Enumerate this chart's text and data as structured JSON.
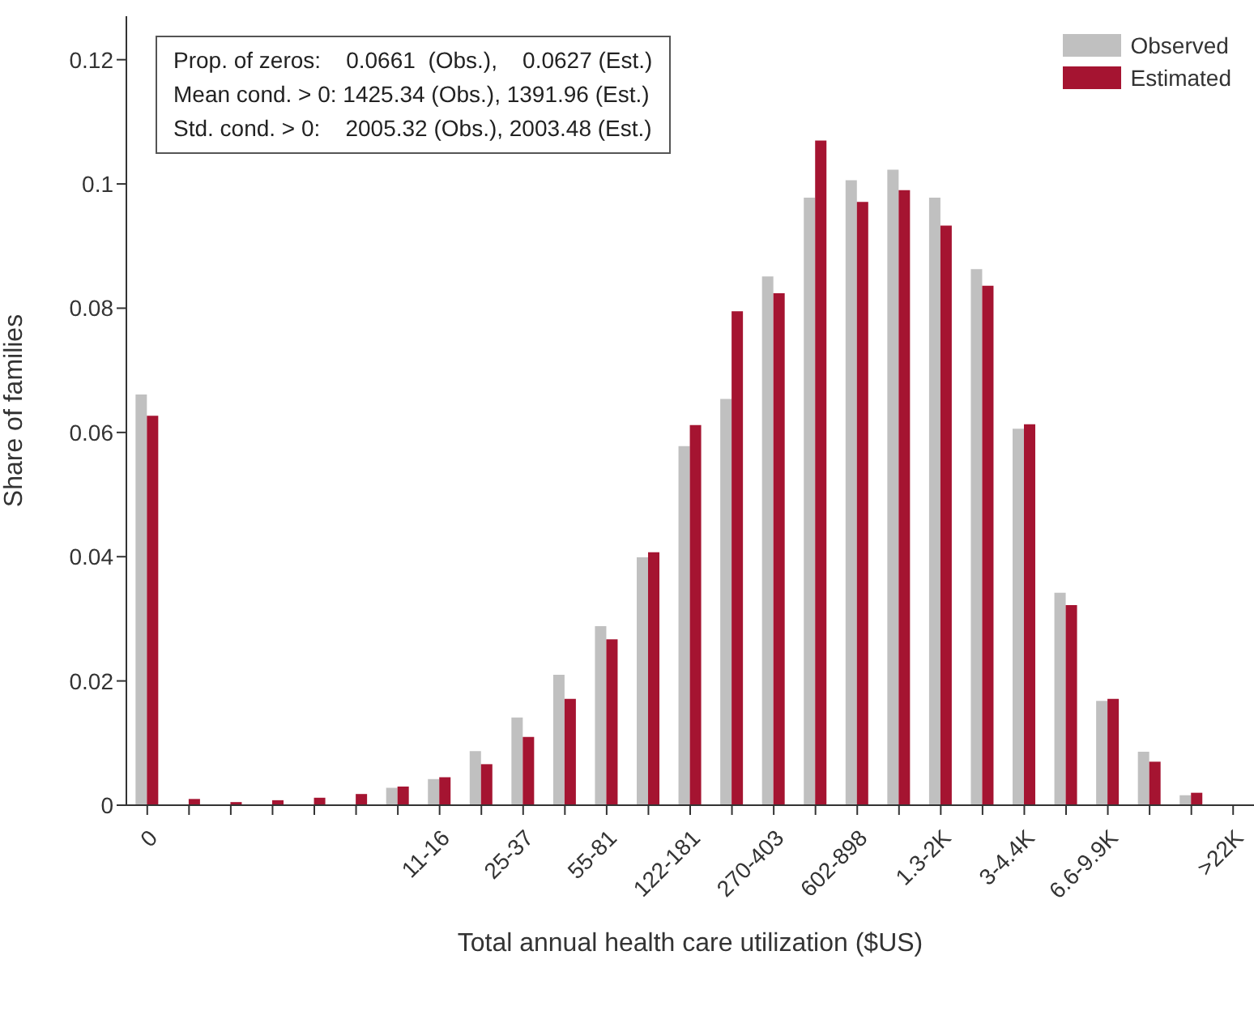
{
  "chart_data": {
    "type": "bar",
    "xlabel": "Total annual health care utilization ($US)",
    "ylabel": "Share of families",
    "categories": [
      "0",
      null,
      null,
      null,
      null,
      null,
      null,
      "11-16",
      null,
      "25-37",
      null,
      "55-81",
      null,
      "122-181",
      null,
      "270-403",
      null,
      "602-898",
      null,
      "1.3-2K",
      null,
      "3-4.4K",
      null,
      "6.6-9.9K",
      null,
      null,
      ">22K"
    ],
    "series": [
      {
        "name": "Observed",
        "color": "#c0c0c0",
        "values": [
          0.0661,
          0,
          0,
          0,
          null,
          null,
          0.0028,
          0.0042,
          0.0087,
          0.0141,
          0.021,
          0.0288,
          0.0399,
          0.0578,
          0.0654,
          0.0851,
          0.0978,
          0.1006,
          0.1023,
          0.0978,
          0.0863,
          0.0606,
          0.0342,
          0.0168,
          0.0086,
          0.0016,
          null
        ]
      },
      {
        "name": "Estimated",
        "color": "#a51431",
        "values": [
          0.0627,
          0.001,
          0.0005,
          0.0008,
          0.0012,
          0.0018,
          0.003,
          0.0045,
          0.0066,
          0.011,
          0.0171,
          0.0267,
          0.0407,
          0.0612,
          0.0795,
          0.0824,
          0.107,
          0.0971,
          0.099,
          0.0933,
          0.0836,
          0.0613,
          0.0322,
          0.0171,
          0.007,
          0.002,
          0
        ]
      }
    ],
    "ylim": [
      0,
      0.127
    ],
    "yticks": [
      0,
      0.02,
      0.04,
      0.06,
      0.08,
      0.1,
      0.12
    ],
    "grid": false,
    "legend": "top right",
    "annotations": [
      "Prop. of zeros:    0.0661  (Obs.),    0.0627 (Est.)",
      "Mean cond. > 0: 1425.34 (Obs.), 1391.96 (Est.)",
      "Std. cond. > 0:    2005.32 (Obs.), 2003.48 (Est.)"
    ]
  }
}
